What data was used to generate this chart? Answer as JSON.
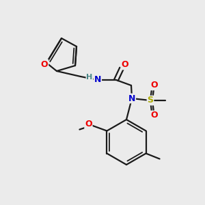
{
  "background_color": "#ebebeb",
  "bond_color": "#1a1a1a",
  "atom_colors": {
    "O": "#ee0000",
    "N": "#0000cc",
    "S": "#aaaa00",
    "C": "#1a1a1a",
    "H": "#4a8888"
  },
  "figsize": [
    3.0,
    3.0
  ],
  "dpi": 100
}
